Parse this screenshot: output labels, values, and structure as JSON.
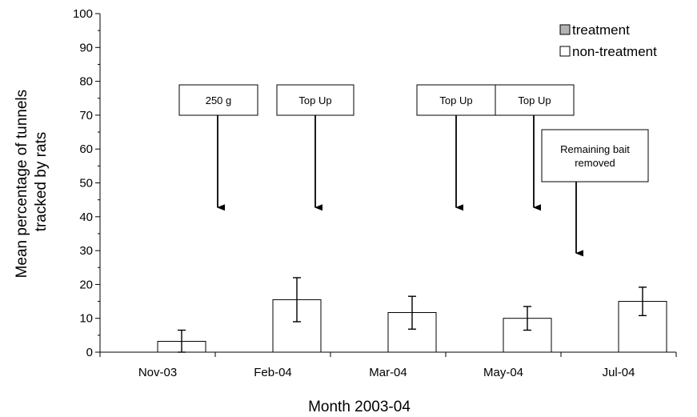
{
  "chart_data": {
    "type": "bar",
    "title": "",
    "xlabel": "Month 2003-04",
    "ylabel_lines": [
      "Mean percentage of tunnels",
      "tracked by rats"
    ],
    "ylim": [
      0,
      100
    ],
    "y_ticks": [
      "0",
      "10",
      "20",
      "30",
      "40",
      "50",
      "60",
      "70",
      "80",
      "90",
      "100"
    ],
    "categories": [
      "Nov-03",
      "Feb-04",
      "Mar-04",
      "May-04",
      "Jul-04"
    ],
    "legend_position": "top-right",
    "grid": false,
    "series": [
      {
        "name": "treatment",
        "color": "#c0c0c0",
        "values": [
          0,
          0,
          0,
          0,
          0
        ]
      },
      {
        "name": "non-treatment",
        "color": "#ffffff",
        "values": [
          3.2,
          15.5,
          11.7,
          10.0,
          15.0
        ],
        "error_low": [
          0.0,
          9.0,
          6.8,
          6.5,
          10.8
        ],
        "error_high": [
          6.5,
          22.0,
          16.5,
          13.5,
          19.2
        ]
      }
    ],
    "annotations": [
      {
        "lines": [
          "250 g"
        ],
        "category_index": 0,
        "arrow_to": 42.5
      },
      {
        "lines": [
          "Top Up"
        ],
        "category_index": 1,
        "arrow_to": 42.5
      },
      {
        "lines": [
          "Top Up"
        ],
        "category_index": 2,
        "arrow_to": 42.5
      },
      {
        "lines": [
          "Top Up"
        ],
        "category_index": 3,
        "arrow_to": 42.5
      },
      {
        "lines": [
          "Remaining bait",
          "removed"
        ],
        "category_index": 4,
        "arrow_to": 29.0
      }
    ]
  }
}
